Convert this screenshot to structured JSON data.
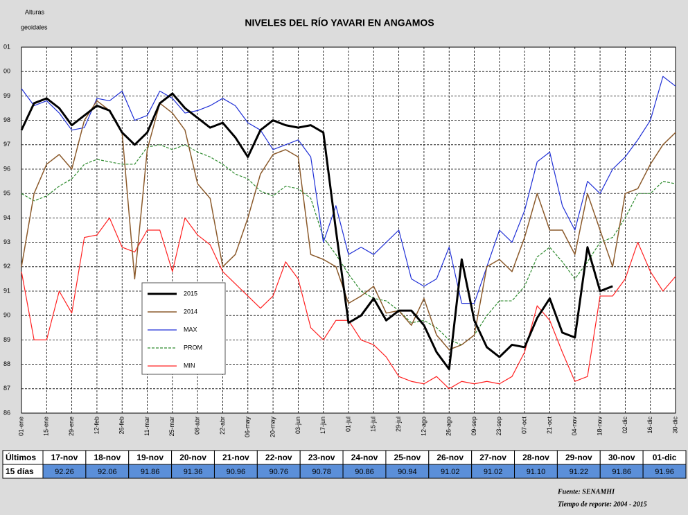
{
  "chart_data": {
    "type": "line",
    "title": "NIVELES DEL RÍO YAVARI EN ANGAMOS",
    "ylabel": [
      "Alturas",
      "geoidales"
    ],
    "xlim": [
      0,
      364
    ],
    "xticks": [
      {
        "value": 0,
        "label": "01-ene"
      },
      {
        "value": 14,
        "label": "15-ene"
      },
      {
        "value": 28,
        "label": "29-ene"
      },
      {
        "value": 42,
        "label": "12-feb"
      },
      {
        "value": 56,
        "label": "26-feb"
      },
      {
        "value": 70,
        "label": "11-mar"
      },
      {
        "value": 84,
        "label": "25-mar"
      },
      {
        "value": 98,
        "label": "08-abr"
      },
      {
        "value": 112,
        "label": "22-abr"
      },
      {
        "value": 126,
        "label": "06-may"
      },
      {
        "value": 140,
        "label": "20-may"
      },
      {
        "value": 154,
        "label": "03-jun"
      },
      {
        "value": 168,
        "label": "17-jun"
      },
      {
        "value": 182,
        "label": "01-jul"
      },
      {
        "value": 196,
        "label": "15-jul"
      },
      {
        "value": 210,
        "label": "29-jul"
      },
      {
        "value": 224,
        "label": "12-ago"
      },
      {
        "value": 238,
        "label": "26-ago"
      },
      {
        "value": 252,
        "label": "09-sep"
      },
      {
        "value": 266,
        "label": "23-sep"
      },
      {
        "value": 280,
        "label": "07-oct"
      },
      {
        "value": 294,
        "label": "21-oct"
      },
      {
        "value": 308,
        "label": "04-nov"
      },
      {
        "value": 322,
        "label": "18-nov"
      },
      {
        "value": 336,
        "label": "02-dic"
      },
      {
        "value": 350,
        "label": "16-dic"
      },
      {
        "value": 364,
        "label": "30-dic"
      }
    ],
    "ylim": [
      86,
      101
    ],
    "yticks": [
      {
        "value": 101,
        "label": "01"
      },
      {
        "value": 100,
        "label": "00"
      },
      99,
      98,
      97,
      96,
      95,
      94,
      93,
      92,
      91,
      90,
      89,
      88,
      87,
      86
    ],
    "grid": true,
    "x": [
      0,
      7,
      14,
      21,
      28,
      35,
      42,
      49,
      56,
      63,
      70,
      77,
      84,
      91,
      98,
      105,
      112,
      119,
      126,
      133,
      140,
      147,
      154,
      161,
      168,
      175,
      182,
      189,
      196,
      203,
      210,
      217,
      224,
      231,
      238,
      245,
      252,
      259,
      266,
      273,
      280,
      287,
      294,
      301,
      308,
      315,
      322,
      329,
      336,
      343,
      350,
      357,
      364
    ],
    "series": [
      {
        "name": "2015",
        "color": "#000000",
        "width": 3,
        "dashed": false,
        "values": [
          97.6,
          98.7,
          98.9,
          98.5,
          97.8,
          98.2,
          98.6,
          98.4,
          97.5,
          97.0,
          97.5,
          98.7,
          99.1,
          98.5,
          98.1,
          97.7,
          97.9,
          97.3,
          96.5,
          97.6,
          98.0,
          97.8,
          97.7,
          97.8,
          97.5,
          93.5,
          89.7,
          90.0,
          90.7,
          89.8,
          90.2,
          90.2,
          89.6,
          88.5,
          87.8,
          92.3,
          89.8,
          88.7,
          88.3,
          88.8,
          88.7,
          89.9,
          90.7,
          89.3,
          89.1,
          92.8,
          91.0,
          91.2,
          null,
          null,
          null,
          null,
          null
        ]
      },
      {
        "name": "2014",
        "color": "#8b5a2b",
        "width": 1.5,
        "dashed": false,
        "values": [
          92.0,
          95.0,
          96.2,
          96.6,
          96.0,
          98.0,
          98.8,
          98.4,
          97.5,
          91.5,
          96.8,
          98.7,
          98.3,
          97.6,
          95.4,
          94.8,
          92.0,
          92.5,
          94.0,
          95.8,
          96.6,
          96.8,
          96.5,
          92.5,
          92.3,
          92.0,
          90.5,
          90.8,
          91.2,
          90.1,
          90.2,
          89.6,
          90.7,
          89.2,
          88.6,
          88.8,
          89.2,
          92.0,
          92.3,
          91.8,
          93.2,
          95.0,
          93.5,
          93.5,
          92.5,
          95.0,
          93.5,
          92.0,
          95.0,
          95.2,
          96.2,
          97.0,
          97.5
        ]
      },
      {
        "name": "MAX",
        "color": "#1f2fd6",
        "width": 1.2,
        "dashed": false,
        "values": [
          99.3,
          98.6,
          98.8,
          98.3,
          97.6,
          97.7,
          98.9,
          98.8,
          99.2,
          98.0,
          98.2,
          99.2,
          98.9,
          98.3,
          98.4,
          98.6,
          98.9,
          98.6,
          97.9,
          97.6,
          96.8,
          97.0,
          97.2,
          96.5,
          93.0,
          94.5,
          92.5,
          92.8,
          92.5,
          93.0,
          93.5,
          91.5,
          91.2,
          91.5,
          92.8,
          90.5,
          90.5,
          92.0,
          93.5,
          93.0,
          94.3,
          96.3,
          96.7,
          94.5,
          93.5,
          95.5,
          95.0,
          96.0,
          96.5,
          97.2,
          98.0,
          99.8,
          99.4
        ]
      },
      {
        "name": "PROM",
        "color": "#2e8b2e",
        "width": 1.2,
        "dashed": true,
        "values": [
          95.0,
          94.7,
          94.9,
          95.3,
          95.6,
          96.2,
          96.4,
          96.3,
          96.2,
          96.2,
          96.9,
          97.0,
          96.8,
          97.0,
          96.7,
          96.5,
          96.2,
          95.8,
          95.6,
          95.1,
          94.9,
          95.3,
          95.2,
          94.8,
          93.2,
          92.5,
          91.7,
          91.0,
          90.7,
          90.6,
          90.2,
          89.7,
          89.8,
          89.5,
          89.0,
          88.8,
          89.2,
          90.0,
          90.6,
          90.6,
          91.2,
          92.4,
          92.8,
          92.2,
          91.5,
          92.2,
          93.0,
          93.2,
          94.0,
          95.0,
          95.0,
          95.5,
          95.4
        ]
      },
      {
        "name": "MIN",
        "color": "#ff2020",
        "width": 1.2,
        "dashed": false,
        "values": [
          91.8,
          89.0,
          89.0,
          91.0,
          90.1,
          93.2,
          93.3,
          94.0,
          92.8,
          92.6,
          93.5,
          93.5,
          91.8,
          94.0,
          93.3,
          92.9,
          91.8,
          91.3,
          90.8,
          90.3,
          90.8,
          92.2,
          91.5,
          89.5,
          89.0,
          89.8,
          89.8,
          89.0,
          88.8,
          88.3,
          87.5,
          87.3,
          87.2,
          87.5,
          87.0,
          87.3,
          87.2,
          87.3,
          87.2,
          87.5,
          88.5,
          90.4,
          89.8,
          88.5,
          87.3,
          87.5,
          90.8,
          90.8,
          91.5,
          93.0,
          91.8,
          91.0,
          91.6
        ]
      }
    ]
  },
  "table": {
    "row_labels": [
      "Últimos",
      "15 días"
    ],
    "headers": [
      "17-nov",
      "18-nov",
      "19-nov",
      "20-nov",
      "21-nov",
      "22-nov",
      "23-nov",
      "24-nov",
      "25-nov",
      "26-nov",
      "27-nov",
      "28-nov",
      "29-nov",
      "30-nov",
      "01-dic"
    ],
    "values": [
      "92.26",
      "92.06",
      "91.86",
      "91.36",
      "90.96",
      "90.76",
      "90.78",
      "90.86",
      "90.94",
      "91.02",
      "91.02",
      "91.10",
      "91.22",
      "91.86",
      "91.96"
    ]
  },
  "source": "Fuente: SENAMHI",
  "report": "Tiempo de reporte: 2004 -  2015"
}
